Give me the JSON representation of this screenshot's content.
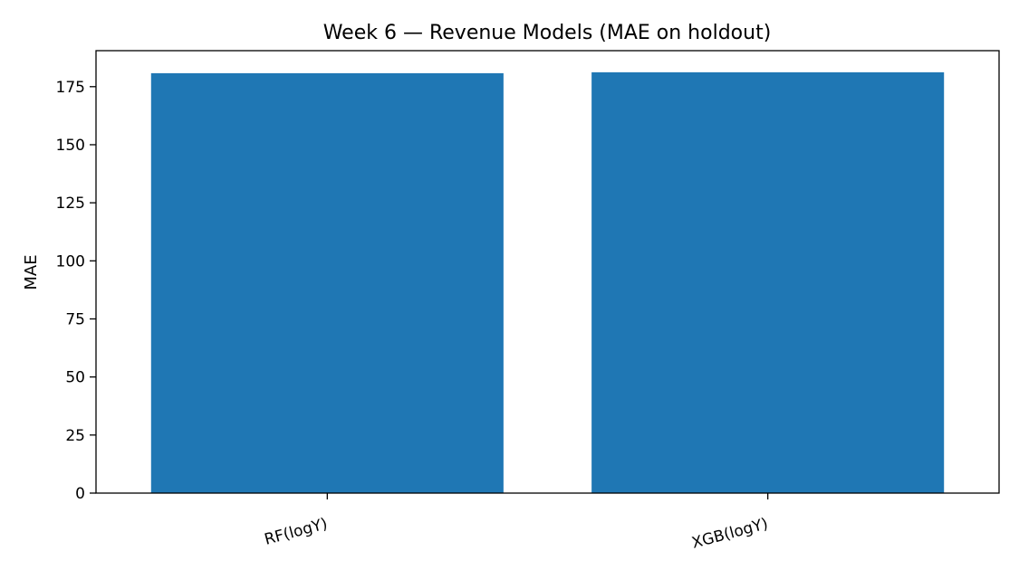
{
  "chart_data": {
    "type": "bar",
    "title": "Week 6 — Revenue Models (MAE on holdout)",
    "xlabel": "",
    "ylabel": "MAE",
    "categories": [
      "RF(logY)",
      "XGB(logY)"
    ],
    "values": [
      180.8,
      181.2
    ],
    "ylim": [
      0,
      190.5
    ],
    "yticks": [
      "0",
      "25",
      "50",
      "75",
      "100",
      "125",
      "150",
      "175"
    ],
    "grid": false,
    "legend": "none",
    "bar_color": "#1f77b4"
  }
}
